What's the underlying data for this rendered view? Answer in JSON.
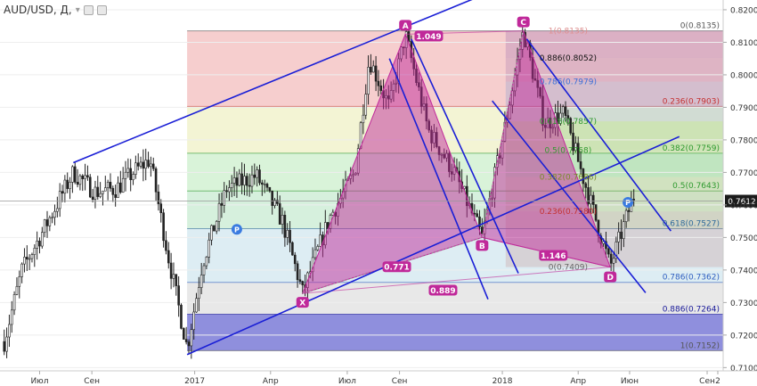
{
  "header": {
    "symbol": "AUD/USD, Д,",
    "menu_glyph": "▾"
  },
  "axis": {
    "y_ticks": [
      "0.8200",
      "0.8100",
      "0.8000",
      "0.7900",
      "0.7800",
      "0.7700",
      "0.7600",
      "0.7500",
      "0.7400",
      "0.7300",
      "0.7200",
      "0.7100"
    ],
    "x_ticks": [
      "Июл",
      "Сен",
      "2017",
      "Апр",
      "Июл",
      "Сен",
      "2018",
      "Апр",
      "Июн",
      "Сен",
      "2"
    ],
    "current_price": "0.7612"
  },
  "colors": {
    "candle": "#222222",
    "trendline": "#1a1fd6",
    "pattern_fill": "#c0299a",
    "label_badge": "#c0299a",
    "blue_badge": "#3a7be0",
    "price_label_bg": "#1b1b1b"
  },
  "fib_upper": [
    {
      "label": "1(0.8135)",
      "color": "#dd8f8f"
    },
    {
      "label": "0.886(0.8052)",
      "color": "#111111"
    },
    {
      "label": "0.786(0.7979)",
      "color": "#3a6fd8"
    },
    {
      "label": "0.618(0.7857)",
      "color": "#2f9a2f"
    },
    {
      "label": "0.5(0.7768)",
      "color": "#2f9a2f"
    },
    {
      "label": "0.382(0.7686)",
      "color": "#7a8a2a"
    },
    {
      "label": "0.236(0.7580)",
      "color": "#c43030"
    },
    {
      "label": "0(0.7409)",
      "color": "#666666"
    }
  ],
  "fib_right": [
    {
      "label": "0(0.8135)",
      "color": "#555555"
    },
    {
      "label": "0.236(0.7903)",
      "color": "#c43030"
    },
    {
      "label": "0.382(0.7759)",
      "color": "#2f9a2f"
    },
    {
      "label": "0.5(0.7643)",
      "color": "#2f9a2f"
    },
    {
      "label": "0.618(0.7527)",
      "color": "#2f6a9a"
    },
    {
      "label": "0.786(0.7362)",
      "color": "#2f5fc0"
    },
    {
      "label": "0.886(0.7264)",
      "color": "#1a1a9a"
    },
    {
      "label": "1(0.7152)",
      "color": "#555555"
    }
  ],
  "pattern_points": [
    "X",
    "A",
    "B",
    "C",
    "D"
  ],
  "ratios": [
    "1.049",
    "0.771",
    "1.146",
    "0.889"
  ],
  "markers": [
    "P",
    "P"
  ],
  "chart_data": {
    "type": "candlestick",
    "symbol": "AUD/USD",
    "timeframe": "Д",
    "x_range": [
      "2016-05-15",
      "2018-09-20"
    ],
    "ylim": [
      0.709,
      0.823
    ],
    "yticks": [
      0.82,
      0.81,
      0.8,
      0.79,
      0.78,
      0.77,
      0.76,
      0.75,
      0.74,
      0.73,
      0.72,
      0.71
    ],
    "current_price": 0.7612,
    "price_path": [
      [
        "2016-05-20",
        0.718
      ],
      [
        "2016-06-10",
        0.74
      ],
      [
        "2016-07-01",
        0.75
      ],
      [
        "2016-07-25",
        0.762
      ],
      [
        "2016-08-10",
        0.77
      ],
      [
        "2016-09-05",
        0.764
      ],
      [
        "2016-09-30",
        0.765
      ],
      [
        "2016-10-20",
        0.77
      ],
      [
        "2016-11-09",
        0.774
      ],
      [
        "2016-11-30",
        0.745
      ],
      [
        "2016-12-23",
        0.716
      ],
      [
        "2017-01-10",
        0.742
      ],
      [
        "2017-02-08",
        0.765
      ],
      [
        "2017-03-15",
        0.769
      ],
      [
        "2017-04-15",
        0.755
      ],
      [
        "2017-05-09",
        0.733
      ],
      [
        "2017-06-10",
        0.756
      ],
      [
        "2017-07-10",
        0.77
      ],
      [
        "2017-07-27",
        0.805
      ],
      [
        "2017-08-20",
        0.79
      ],
      [
        "2017-09-08",
        0.8125
      ],
      [
        "2017-10-05",
        0.783
      ],
      [
        "2017-11-05",
        0.77
      ],
      [
        "2017-12-08",
        0.75
      ],
      [
        "2018-01-05",
        0.785
      ],
      [
        "2018-01-26",
        0.8135
      ],
      [
        "2018-02-20",
        0.785
      ],
      [
        "2018-03-15",
        0.788
      ],
      [
        "2018-04-05",
        0.77
      ],
      [
        "2018-05-09",
        0.741
      ],
      [
        "2018-06-06",
        0.763
      ]
    ],
    "harmonic_pattern": {
      "X": {
        "date": "2017-05-09",
        "price": 0.7328
      },
      "A": {
        "date": "2017-09-08",
        "price": 0.8125
      },
      "B": {
        "date": "2017-12-08",
        "price": 0.75
      },
      "C": {
        "date": "2018-01-26",
        "price": 0.8135
      },
      "D": {
        "date": "2018-05-09",
        "price": 0.7409
      },
      "ratios": {
        "AB": 0.771,
        "XA_C": 1.049,
        "BC": 1.146,
        "XD": 0.889
      }
    },
    "fib_retracement_upper": {
      "from_date": "2018-01-05",
      "to_date": "2018-09-20",
      "levels": [
        {
          "ratio": 1,
          "price": 0.8135
        },
        {
          "ratio": 0.886,
          "price": 0.8052
        },
        {
          "ratio": 0.786,
          "price": 0.7979
        },
        {
          "ratio": 0.618,
          "price": 0.7857
        },
        {
          "ratio": 0.5,
          "price": 0.7768
        },
        {
          "ratio": 0.382,
          "price": 0.7686
        },
        {
          "ratio": 0.236,
          "price": 0.758
        },
        {
          "ratio": 0,
          "price": 0.7409
        }
      ]
    },
    "fib_retracement_right": {
      "from_date": "2016-12-23",
      "to_date": "2018-09-20",
      "levels": [
        {
          "ratio": 0,
          "price": 0.8135
        },
        {
          "ratio": 0.236,
          "price": 0.7903
        },
        {
          "ratio": 0.382,
          "price": 0.7759
        },
        {
          "ratio": 0.5,
          "price": 0.7643
        },
        {
          "ratio": 0.618,
          "price": 0.7527
        },
        {
          "ratio": 0.786,
          "price": 0.7362
        },
        {
          "ratio": 0.886,
          "price": 0.7264
        },
        {
          "ratio": 1,
          "price": 0.7152
        }
      ]
    },
    "trendlines": [
      {
        "from": [
          "2016-08-10",
          0.773
        ],
        "to": [
          "2018-01-20",
          0.829
        ]
      },
      {
        "from": [
          "2016-12-23",
          0.714
        ],
        "to": [
          "2018-07-30",
          0.781
        ]
      },
      {
        "from": [
          "2017-08-20",
          0.805
        ],
        "to": [
          "2017-12-15",
          0.731
        ]
      },
      {
        "from": [
          "2017-09-15",
          0.811
        ],
        "to": [
          "2018-01-20",
          0.739
        ]
      },
      {
        "from": [
          "2017-12-20",
          0.792
        ],
        "to": [
          "2018-06-20",
          0.733
        ]
      },
      {
        "from": [
          "2018-01-30",
          0.811
        ],
        "to": [
          "2018-07-20",
          0.752
        ]
      }
    ]
  }
}
